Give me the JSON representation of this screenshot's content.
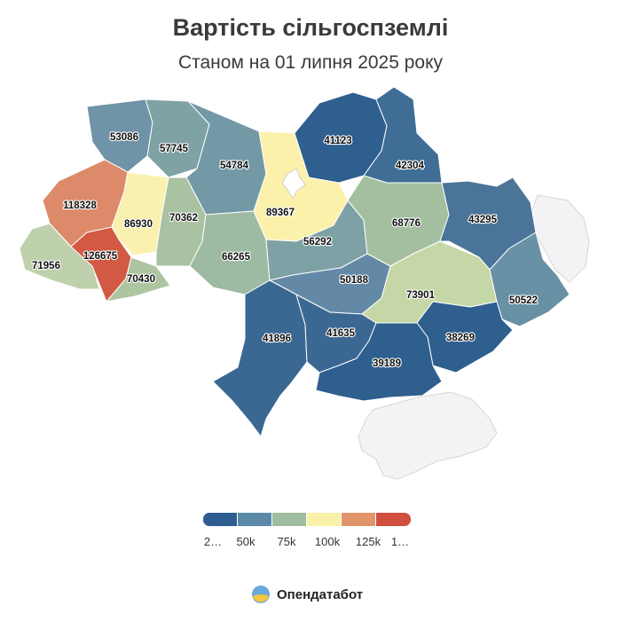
{
  "title": "Вартість сільгоспземлі",
  "subtitle": "Станом на 01 липня 2025 року",
  "brand": "Опендатабот",
  "legend": {
    "colors": [
      "#2e5d91",
      "#5b8aa8",
      "#9ebc9f",
      "#f9f1a8",
      "#e2956a",
      "#d14f3e"
    ],
    "ticks": [
      "2…",
      "50k",
      "75k",
      "100k",
      "125k",
      "1…"
    ]
  },
  "chart_data": {
    "type": "heatmap",
    "title": "Вартість сільгоспземлі",
    "subtitle": "Станом на 01 липня 2025 року",
    "values": [
      "53086",
      "57745",
      "54784",
      "41123",
      "42304",
      "118328",
      "86930",
      "70362",
      "89367",
      "68776",
      "43295",
      "126675",
      "71956",
      "70430",
      "66265",
      "56292",
      "50188",
      "73901",
      "50522",
      "41896",
      "41635",
      "38269",
      "39189"
    ],
    "color_scale": [
      "#2e5d91",
      "#5b8aa8",
      "#9ebc9f",
      "#f9f1a8",
      "#e2956a",
      "#d14f3e"
    ],
    "legend_ticks": [
      "2…",
      "50k",
      "75k",
      "100k",
      "125k",
      "1…"
    ]
  }
}
